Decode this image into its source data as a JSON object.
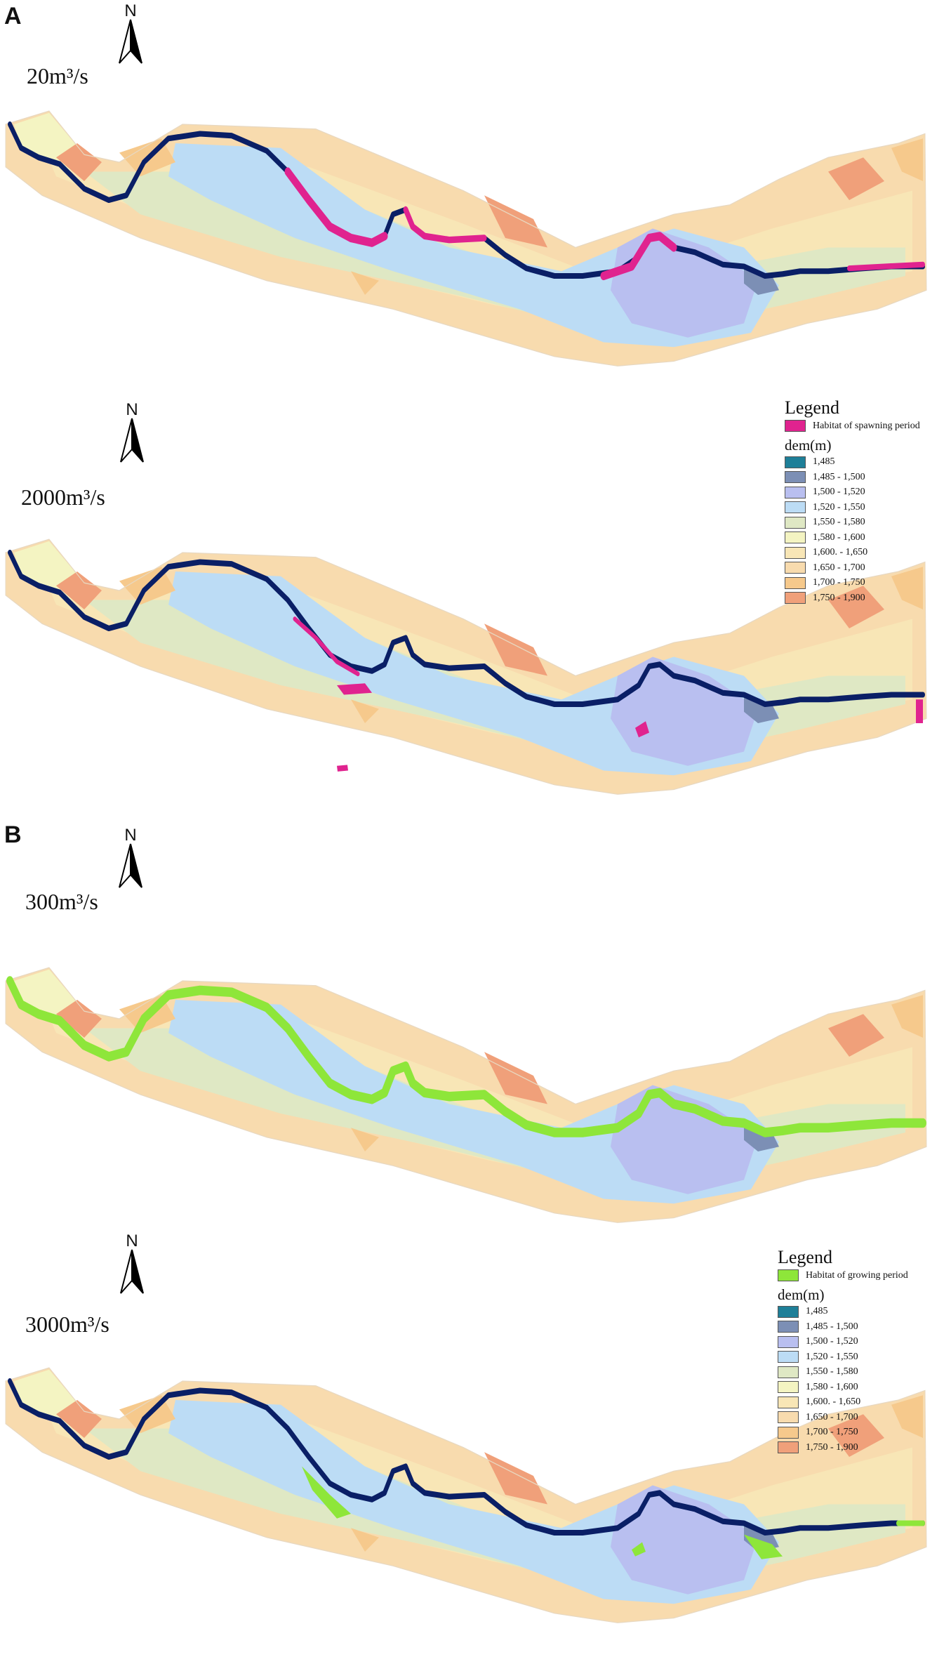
{
  "panels": [
    {
      "letter": "A",
      "legend": {
        "title": "Legend",
        "habitat_label": "Habitat of  spawning period",
        "habitat_color": "#e0238f",
        "dem_title": "dem(m)"
      },
      "maps": [
        {
          "flow": "20m³/s",
          "north": "N"
        },
        {
          "flow": "2000m³/s",
          "north": "N"
        }
      ]
    },
    {
      "letter": "B",
      "legend": {
        "title": "Legend",
        "habitat_label": "Habitat of  growing period",
        "habitat_color": "#8ee63a",
        "dem_title": "dem(m)"
      },
      "maps": [
        {
          "flow": "300m³/s",
          "north": "N"
        },
        {
          "flow": "3000m³/s",
          "north": "N"
        }
      ]
    }
  ],
  "dem_classes": [
    {
      "label": "1,485",
      "color": "#1e7f98"
    },
    {
      "label": "1,485 - 1,500",
      "color": "#7c8fb5"
    },
    {
      "label": "1,500 - 1,520",
      "color": "#b9bff0"
    },
    {
      "label": "1,520 - 1,550",
      "color": "#bcdcf5"
    },
    {
      "label": "1,550 - 1,580",
      "color": "#dfe8c4"
    },
    {
      "label": "1,580 - 1,600",
      "color": "#f4f4c2"
    },
    {
      "label": "1,600. - 1,650",
      "color": "#f8e6b6"
    },
    {
      "label": "1,650 - 1,700",
      "color": "#f8dbae"
    },
    {
      "label": "1,700 - 1,750",
      "color": "#f6c98c"
    },
    {
      "label": "1,750 - 1,900",
      "color": "#f0a07a"
    }
  ],
  "channel_color": "#0a1f66"
}
